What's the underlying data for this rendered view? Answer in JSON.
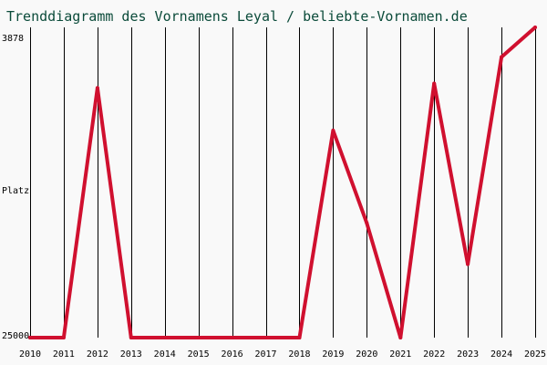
{
  "chart_data": {
    "type": "line",
    "title": "Trenddiagramm des Vornamens Leyal / beliebte-Vornamen.de",
    "ylabel": "Platz",
    "y_top_label": "3878",
    "y_bottom_label": "25000",
    "ylim": [
      25000,
      3878
    ],
    "grid": "vertical",
    "categories": [
      "2010",
      "2011",
      "2012",
      "2013",
      "2014",
      "2015",
      "2016",
      "2017",
      "2018",
      "2019",
      "2020",
      "2021",
      "2022",
      "2023",
      "2024",
      "2025"
    ],
    "series": [
      {
        "color": "#d0102f",
        "points": [
          {
            "x": "2010",
            "y": 25000
          },
          {
            "x": "2011",
            "y": 25000
          },
          {
            "x": "2012",
            "y": 8000
          },
          {
            "x": "2013",
            "y": 25000
          },
          {
            "x": "2014",
            "y": 25000
          },
          {
            "x": "2015",
            "y": 25000
          },
          {
            "x": "2016",
            "y": 25000
          },
          {
            "x": "2017",
            "y": 25000
          },
          {
            "x": "2018",
            "y": 25000
          },
          {
            "x": "2019",
            "y": 10900
          },
          {
            "x": "2020",
            "y": 17200
          },
          {
            "x": "2021",
            "y": 25000
          },
          {
            "x": "2022",
            "y": 7700
          },
          {
            "x": "2023",
            "y": 20000
          },
          {
            "x": "2024",
            "y": 5900
          },
          {
            "x": "2025",
            "y": 3878
          }
        ]
      }
    ]
  }
}
